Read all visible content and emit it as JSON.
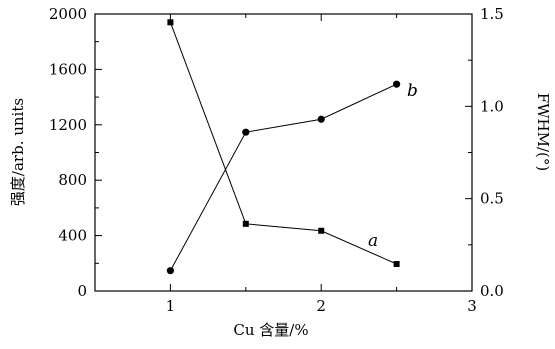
{
  "chart_data": {
    "type": "line",
    "xlabel": "Cu 含量/%",
    "ylabel_left": "强度/arb. units",
    "ylabel_right": "FWHM/(°)",
    "x_ticks": [
      "1",
      "2",
      "3"
    ],
    "y_left_ticks": [
      "0",
      "400",
      "800",
      "1200",
      "1600",
      "2000"
    ],
    "y_right_ticks": [
      "0.0",
      "0.5",
      "1.0",
      "1.5"
    ],
    "xlim": [
      0.5,
      3.0
    ],
    "ylim_left": [
      0,
      2000
    ],
    "ylim_right": [
      0.0,
      1.5
    ],
    "grid": false,
    "series": [
      {
        "name": "a",
        "axis": "left",
        "marker": "square",
        "x": [
          1.0,
          1.5,
          2.0,
          2.5
        ],
        "y": [
          1940,
          485,
          435,
          195
        ]
      },
      {
        "name": "b",
        "axis": "right",
        "marker": "circle",
        "x": [
          1.0,
          1.5,
          2.0,
          2.5
        ],
        "y": [
          0.11,
          0.86,
          0.93,
          1.12
        ]
      }
    ]
  }
}
